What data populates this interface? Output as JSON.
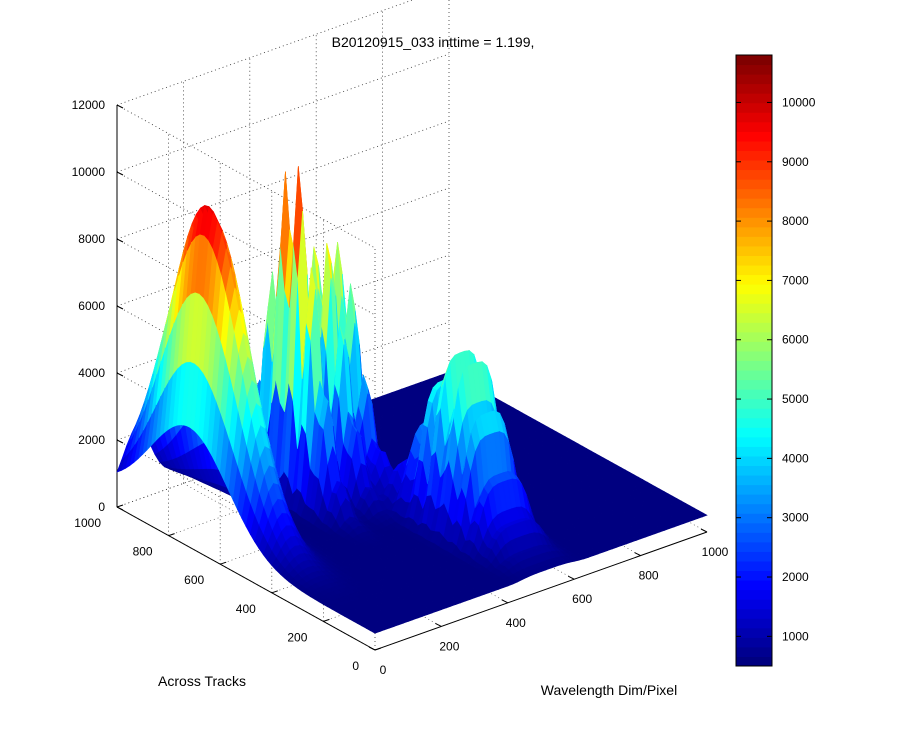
{
  "chart_data": {
    "type": "surface",
    "title": "B20120915_033 inttime = 1.199,",
    "xlabel": "Wavelength Dim/Pixel",
    "ylabel": "Across Tracks",
    "zlabel": "",
    "xlim": [
      0,
      1000
    ],
    "ylim": [
      0,
      1000
    ],
    "zlim": [
      0,
      12000
    ],
    "x_ticks": [
      "0",
      "200",
      "400",
      "600",
      "800",
      "1000"
    ],
    "y_ticks": [
      "0",
      "200",
      "400",
      "600",
      "800",
      "1000"
    ],
    "z_ticks": [
      "0",
      "2000",
      "4000",
      "6000",
      "8000",
      "10000",
      "12000"
    ],
    "colorbar": {
      "colormap": "jet",
      "range": [
        500,
        10800
      ],
      "ticks": [
        "1000",
        "2000",
        "3000",
        "4000",
        "5000",
        "6000",
        "7000",
        "8000",
        "9000",
        "10000"
      ]
    },
    "grid": true,
    "peaks": [
      {
        "x": 60,
        "y": 720,
        "z": 10000,
        "sx": 40,
        "sy": 150
      },
      {
        "x": 300,
        "y": 700,
        "z": 10800,
        "sx": 20,
        "sy": 90,
        "ridges": true
      },
      {
        "x": 390,
        "y": 700,
        "z": 8300,
        "sx": 20,
        "sy": 85,
        "ridges": true
      },
      {
        "x": 460,
        "y": 730,
        "z": 7500,
        "sx": 20,
        "sy": 85,
        "ridges": true
      },
      {
        "x": 520,
        "y": 320,
        "z": 5800,
        "sx": 70,
        "sy": 110,
        "ridges": true,
        "plateau": true
      }
    ],
    "baseline": 500
  }
}
